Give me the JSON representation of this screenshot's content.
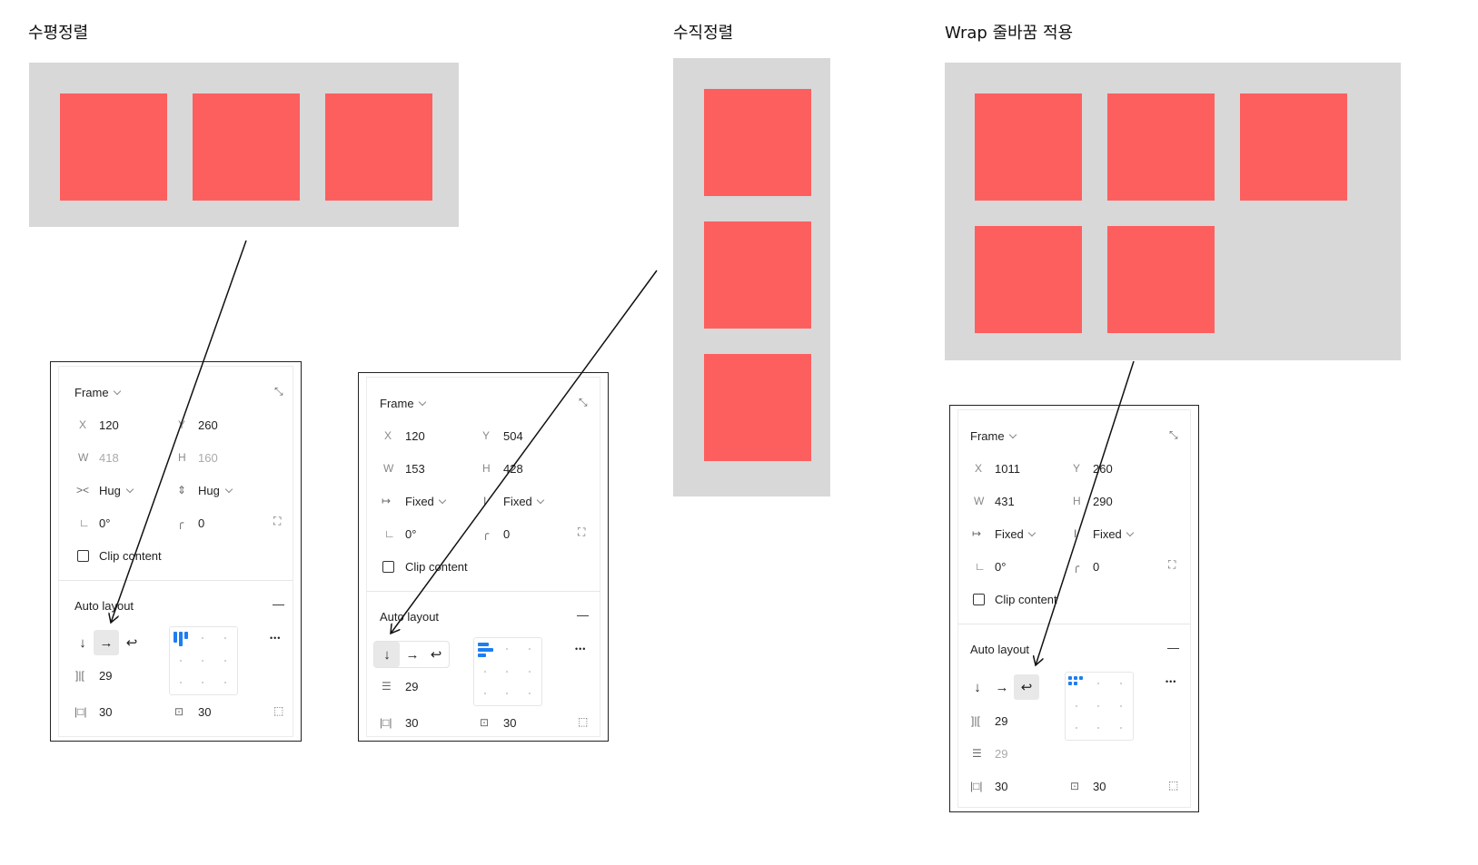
{
  "titles": {
    "horizontal": "수평정렬",
    "vertical": "수직정렬",
    "wrap": "Wrap 줄바꿈 적용"
  },
  "colors": {
    "box": "#fd5f5f",
    "frame": "#d8d8d8",
    "accent": "#1e7ef0"
  },
  "panels": [
    {
      "frame_label": "Frame",
      "x": "120",
      "y": "260",
      "w": "418",
      "h": "160",
      "width_mode": "Hug",
      "height_mode": "Hug",
      "rotation": "0°",
      "radius": "0",
      "clip_label": "Clip content",
      "auto_layout_label": "Auto layout",
      "direction": "horizontal",
      "gap": "29",
      "pad_h": "30",
      "pad_v": "30",
      "labels": {
        "x": "X",
        "y": "Y",
        "w": "W",
        "h": "H"
      }
    },
    {
      "frame_label": "Frame",
      "x": "120",
      "y": "504",
      "w": "153",
      "h": "428",
      "width_mode": "Fixed",
      "height_mode": "Fixed",
      "rotation": "0°",
      "radius": "0",
      "clip_label": "Clip content",
      "auto_layout_label": "Auto layout",
      "direction": "vertical",
      "gap": "29",
      "pad_h": "30",
      "pad_v": "30",
      "labels": {
        "x": "X",
        "y": "Y",
        "w": "W",
        "h": "H"
      }
    },
    {
      "frame_label": "Frame",
      "x": "1011",
      "y": "260",
      "w": "431",
      "h": "290",
      "width_mode": "Fixed",
      "height_mode": "Fixed",
      "rotation": "0°",
      "radius": "0",
      "clip_label": "Clip content",
      "auto_layout_label": "Auto layout",
      "direction": "wrap",
      "gap": "29",
      "gap_v": "29",
      "pad_h": "30",
      "pad_v": "30",
      "labels": {
        "x": "X",
        "y": "Y",
        "w": "W",
        "h": "H"
      }
    }
  ],
  "icons": {
    "collapse": "collapse-icon",
    "rotation": "rotation-icon",
    "corner": "corner-radius-icon",
    "independent": "independent-corners-icon",
    "down_arrow": "arrow-down-icon",
    "right_arrow": "arrow-right-icon",
    "wrap_arrow": "wrap-icon",
    "more": "more-icon",
    "minus": "minus-icon"
  },
  "glyphs": {
    "down": "↓",
    "right": "→",
    "wrap": "↩",
    "more": "•••",
    "collapse": "⤡",
    "rotation": "∟",
    "corner": "╭",
    "independent": "⛶",
    "gap_h": "]|[",
    "gap_v": "☰",
    "pad_h": "|□|",
    "pad_v": "⊡",
    "resize": "⬚",
    "minus": "—",
    "hug_w": "><",
    "hug_h": "⇕",
    "fixed_w": "↦",
    "fixed_h": "I"
  }
}
